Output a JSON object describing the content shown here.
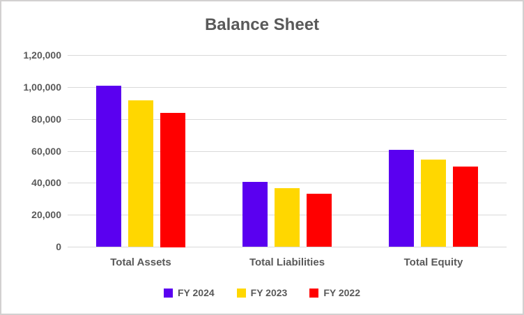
{
  "chart_data": {
    "type": "bar",
    "title": "Balance Sheet",
    "categories": [
      "Total Assets",
      "Total Liabilities",
      "Total Equity"
    ],
    "series": [
      {
        "name": "FY 2024",
        "color": "#5A00F0",
        "values": [
          101000,
          40500,
          60500
        ]
      },
      {
        "name": "FY 2023",
        "color": "#FFD700",
        "values": [
          91500,
          36500,
          54500
        ]
      },
      {
        "name": "FY 2022",
        "color": "#FF0000",
        "values": [
          84000,
          33000,
          50000
        ]
      }
    ],
    "y_axis": {
      "min": 0,
      "max": 120000,
      "step": 20000,
      "tick_labels": [
        "0",
        "20,000",
        "40,000",
        "60,000",
        "80,000",
        "1,00,000",
        "1,20,000"
      ]
    },
    "xlabel": "",
    "ylabel": "",
    "legend_position": "bottom",
    "grid": true,
    "colors": {
      "text": "#595959",
      "gridline": "#D9D9D9",
      "frame_border": "#D2D0D0",
      "background": "#FFFFFF"
    }
  }
}
